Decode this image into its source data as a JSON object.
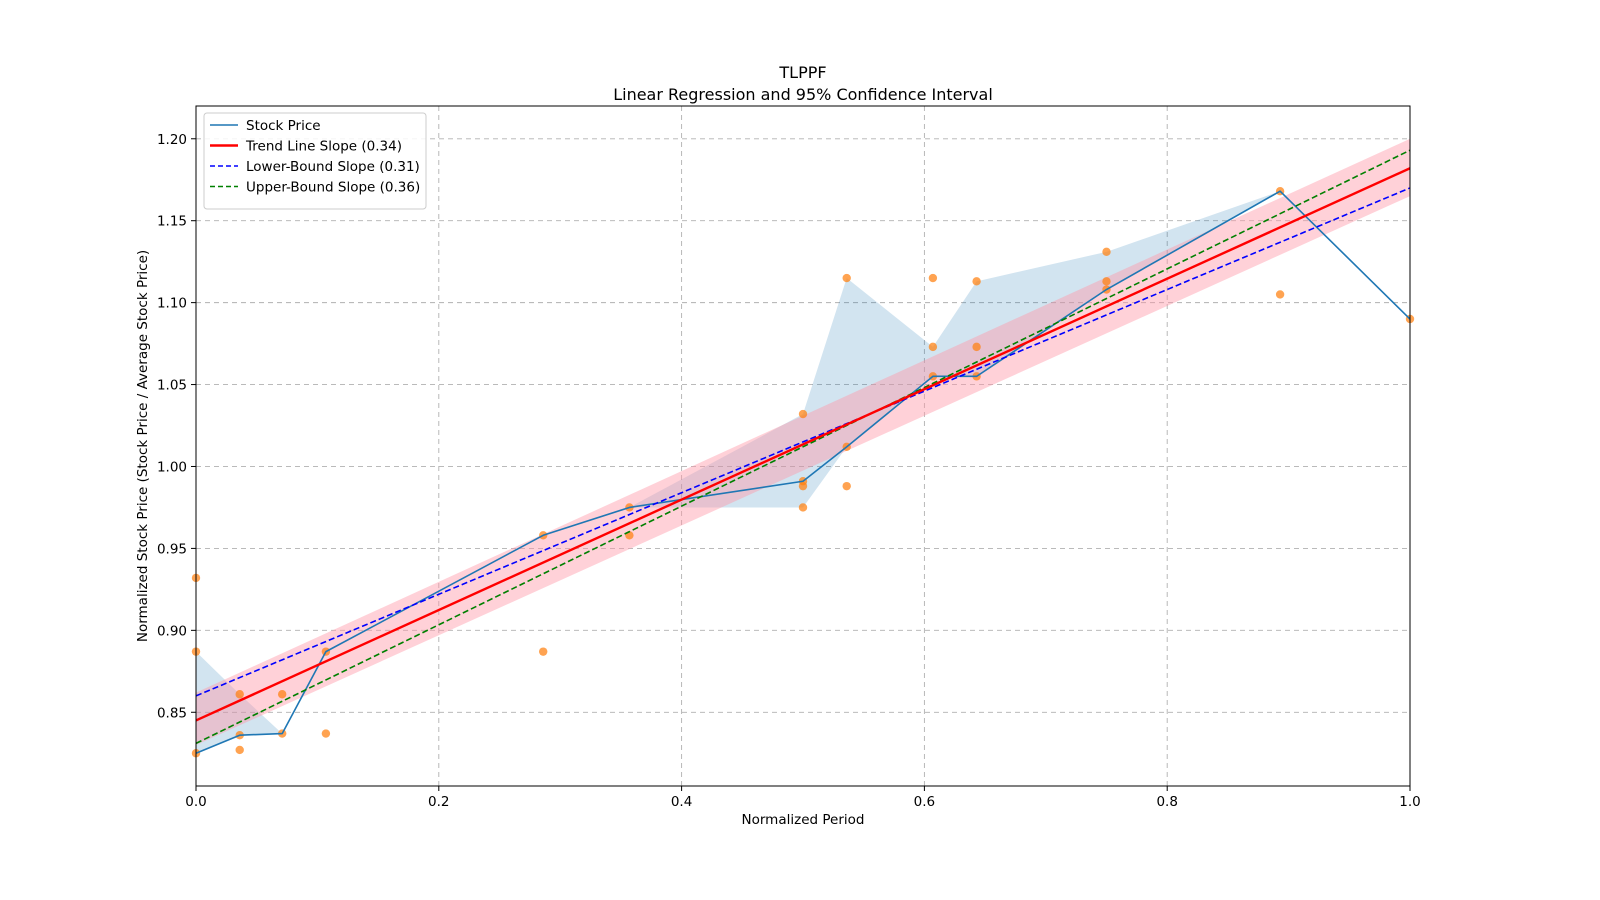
{
  "chart_data": {
    "type": "line",
    "title": "TLPPF",
    "subtitle": "Linear Regression and 95% Confidence Interval",
    "xlabel": "Normalized Period",
    "ylabel": "Normalized Stock Price (Stock Price / Average Stock Price)",
    "xlim": [
      0.0,
      1.0
    ],
    "ylim": [
      0.805,
      1.22
    ],
    "x_ticks": [
      0.0,
      0.2,
      0.4,
      0.6,
      0.8,
      1.0
    ],
    "x_tick_labels": [
      "0.0",
      "0.2",
      "0.4",
      "0.6",
      "0.8",
      "1.0"
    ],
    "y_ticks": [
      0.85,
      0.9,
      0.95,
      1.0,
      1.05,
      1.1,
      1.15,
      1.2
    ],
    "y_tick_labels": [
      "0.85",
      "0.90",
      "0.95",
      "1.00",
      "1.05",
      "1.10",
      "1.15",
      "1.20"
    ],
    "grid": true,
    "legend_position": "top-left",
    "colors": {
      "stock": "#1f77b4",
      "stock_band": "#1f77b4",
      "trend": "#ff0000",
      "trend_band": "#ff9aa8",
      "lower": "#0000ff",
      "upper": "#008000",
      "points": "#ff7f0e"
    },
    "series": [
      {
        "name": "Stock Price",
        "style": "solid",
        "x": [
          0.0,
          0.036,
          0.071,
          0.107,
          0.286,
          0.357,
          0.5,
          0.536,
          0.607,
          0.643,
          0.75,
          0.893,
          1.0
        ],
        "values": [
          0.825,
          0.836,
          0.837,
          0.887,
          0.958,
          0.975,
          0.991,
          1.012,
          1.055,
          1.055,
          1.108,
          1.168,
          1.09
        ]
      },
      {
        "name": "Trend Line Slope (0.34)",
        "style": "solid",
        "x": [
          0.0,
          1.0
        ],
        "values": [
          0.845,
          1.182
        ]
      },
      {
        "name": "Lower-Bound Slope (0.31)",
        "style": "dashed",
        "x": [
          0.0,
          1.0
        ],
        "values": [
          0.86,
          1.17
        ]
      },
      {
        "name": "Upper-Bound Slope (0.36)",
        "style": "dashed",
        "x": [
          0.0,
          1.0
        ],
        "values": [
          0.831,
          1.193
        ]
      }
    ],
    "stock_band": {
      "x": [
        0.0,
        0.036,
        0.071,
        0.107,
        0.286,
        0.357,
        0.5,
        0.536,
        0.607,
        0.643,
        0.75,
        0.893,
        1.0
      ],
      "upper": [
        0.887,
        0.861,
        0.837,
        0.887,
        0.958,
        0.975,
        1.032,
        1.115,
        1.073,
        1.113,
        1.131,
        1.168,
        1.09
      ],
      "lower": [
        0.825,
        0.836,
        0.837,
        0.887,
        0.958,
        0.975,
        0.975,
        1.012,
        1.055,
        1.055,
        1.108,
        1.168,
        1.09
      ]
    },
    "trend_band": {
      "x": [
        0.0,
        1.0
      ],
      "upper": [
        0.862,
        1.2
      ],
      "lower": [
        0.83,
        1.165
      ]
    },
    "scatter_points": [
      [
        0.0,
        0.932
      ],
      [
        0.0,
        0.887
      ],
      [
        0.0,
        0.825
      ],
      [
        0.036,
        0.861
      ],
      [
        0.036,
        0.836
      ],
      [
        0.036,
        0.827
      ],
      [
        0.071,
        0.861
      ],
      [
        0.071,
        0.837
      ],
      [
        0.107,
        0.887
      ],
      [
        0.107,
        0.837
      ],
      [
        0.286,
        0.958
      ],
      [
        0.286,
        0.887
      ],
      [
        0.357,
        0.975
      ],
      [
        0.357,
        0.958
      ],
      [
        0.5,
        1.032
      ],
      [
        0.5,
        0.991
      ],
      [
        0.5,
        0.988
      ],
      [
        0.5,
        0.975
      ],
      [
        0.536,
        1.115
      ],
      [
        0.536,
        1.012
      ],
      [
        0.536,
        0.988
      ],
      [
        0.607,
        1.115
      ],
      [
        0.607,
        1.073
      ],
      [
        0.607,
        1.055
      ],
      [
        0.643,
        1.113
      ],
      [
        0.643,
        1.073
      ],
      [
        0.643,
        1.055
      ],
      [
        0.75,
        1.131
      ],
      [
        0.75,
        1.113
      ],
      [
        0.75,
        1.108
      ],
      [
        0.893,
        1.168
      ],
      [
        0.893,
        1.105
      ],
      [
        1.0,
        1.09
      ]
    ]
  }
}
